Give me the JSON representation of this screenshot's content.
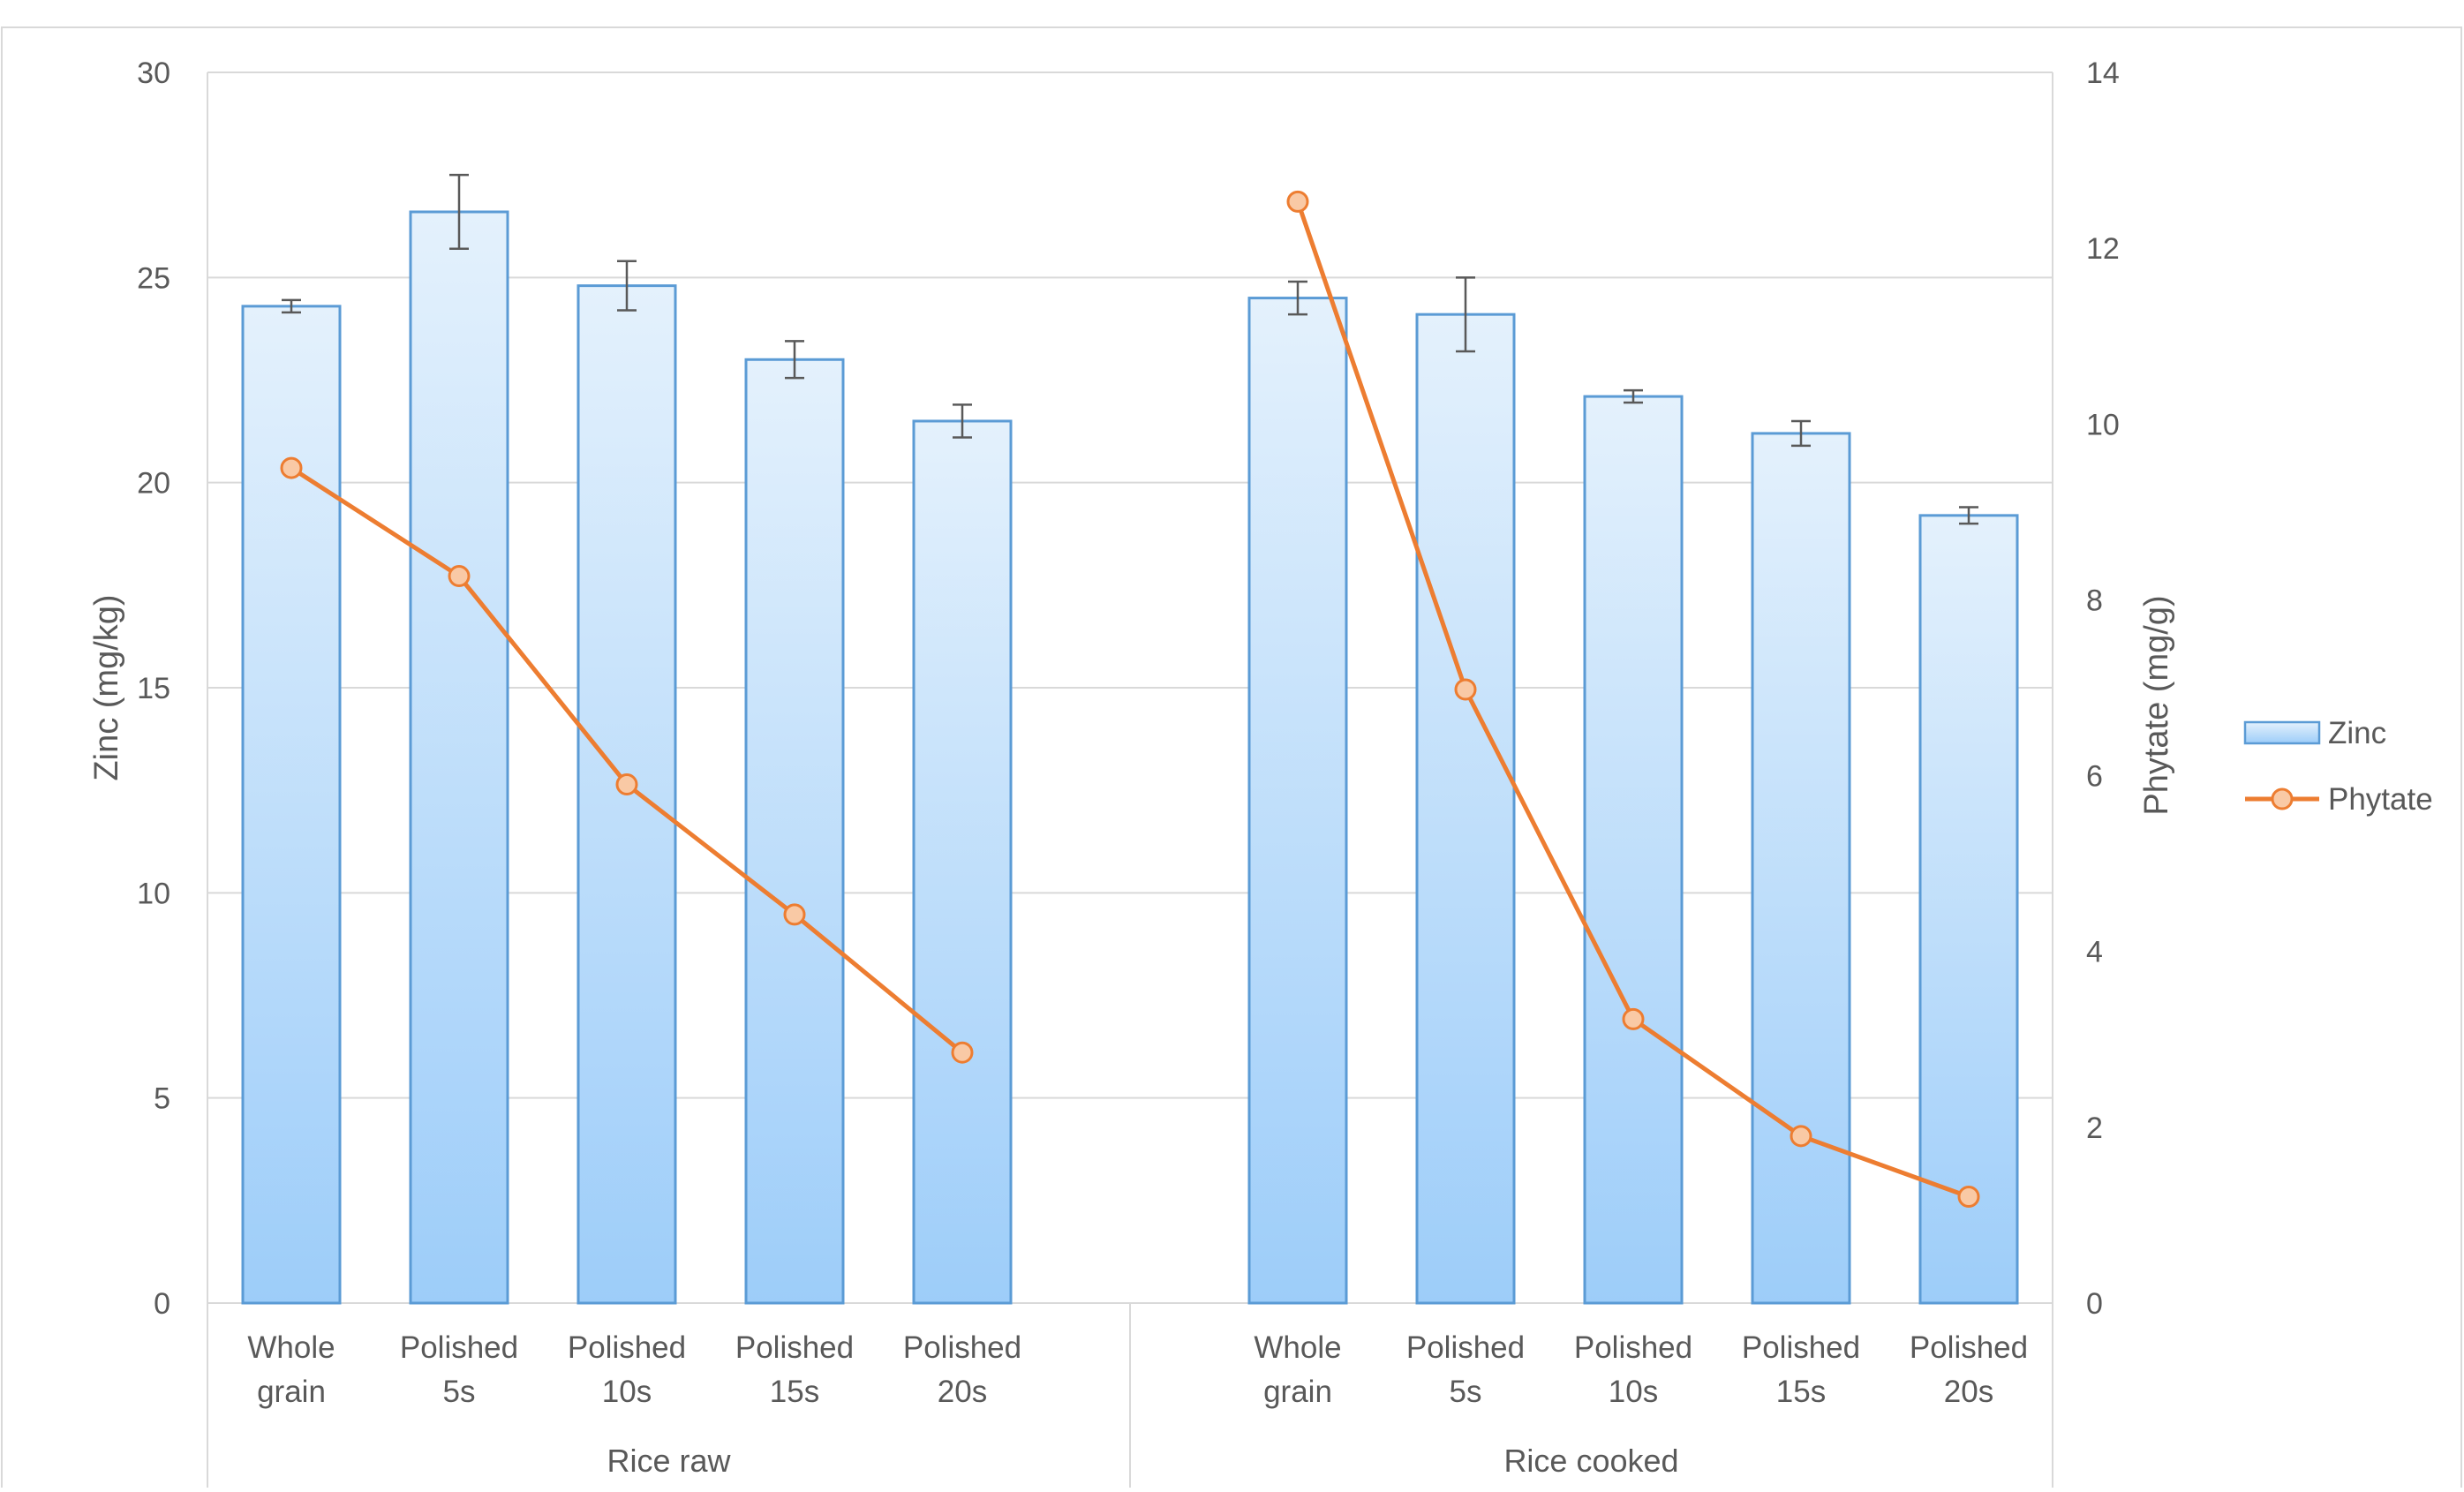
{
  "chart_data": {
    "type": "bar",
    "groups": [
      {
        "label": "Rice raw",
        "categories": [
          "Whole grain",
          "Polished 5s",
          "Polished 10s",
          "Polished 15s",
          "Polished 20s"
        ]
      },
      {
        "label": "Rice cooked",
        "categories": [
          "Whole grain",
          "Polished 5s",
          "Polished 10s",
          "Polished 15s",
          "Polished 20s"
        ]
      }
    ],
    "categories": [
      "Whole grain",
      "Polished 5s",
      "Polished 10s",
      "Polished 15s",
      "Polished 20s",
      "",
      "Whole grain",
      "Polished 5s",
      "Polished 10s",
      "Polished 15s",
      "Polished 20s"
    ],
    "series": [
      {
        "name": "Zinc",
        "type": "bar",
        "axis": "left",
        "values": [
          24.3,
          26.6,
          24.8,
          23.0,
          21.5,
          null,
          24.5,
          24.1,
          22.1,
          21.2,
          19.2
        ],
        "errors": [
          0.15,
          0.9,
          0.6,
          0.45,
          0.4,
          null,
          0.4,
          0.9,
          0.15,
          0.3,
          0.2
        ]
      },
      {
        "name": "Phytate",
        "type": "line",
        "axis": "right",
        "values": [
          9.5,
          8.27,
          5.9,
          4.42,
          2.85,
          null,
          12.53,
          6.98,
          3.23,
          1.9,
          1.21
        ]
      }
    ],
    "ylabel": "Zinc (mg/kg)",
    "y2label": "Phytate (mg/g)",
    "ylim": [
      0,
      30
    ],
    "y2lim": [
      0,
      14
    ],
    "yticks": [
      0,
      5,
      10,
      15,
      20,
      25,
      30
    ],
    "y2ticks": [
      0,
      2,
      4,
      6,
      8,
      10,
      12,
      14
    ],
    "grid": true,
    "legend_position": "right",
    "colors": {
      "bar_fill_top": "#e4f1fc",
      "bar_fill_bottom": "#9dcdf9",
      "bar_stroke": "#5b9bd5",
      "line": "#ed7d31",
      "marker_fill": "#f9c9a5",
      "error_bar": "#595959",
      "grid": "#d9d9d9"
    }
  }
}
